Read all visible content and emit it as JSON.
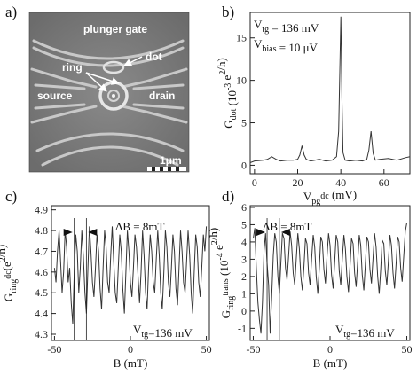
{
  "panels": {
    "a": {
      "label": "a)",
      "image_labels": {
        "plunger_gate": "plunger gate",
        "dot": "dot",
        "ring": "ring",
        "source": "source",
        "drain": "drain",
        "scale_bar": "1μm"
      }
    },
    "b": {
      "label": "b)"
    },
    "c": {
      "label": "c)"
    },
    "d": {
      "label": "d)"
    }
  },
  "chart_data": [
    {
      "id": "b",
      "type": "line",
      "annotations": [
        "V_tg = 136 mV",
        "V_bias = 10 μV"
      ],
      "ylabel": "G_dot (10^-3 e^2/h)",
      "xlabel": "V_pg^dc (mV)",
      "xlim": [
        -2,
        72
      ],
      "ylim": [
        -1,
        18
      ],
      "xticks": [
        0,
        20,
        40,
        60
      ],
      "yticks": [
        0,
        5,
        10,
        15
      ],
      "x": [
        -2,
        0,
        4,
        6,
        8,
        10,
        12,
        15,
        18,
        20,
        21,
        22,
        23,
        24,
        25,
        26,
        28,
        30,
        33,
        36,
        38,
        39,
        40,
        40.5,
        41,
        42,
        44,
        47,
        50,
        52,
        53,
        54,
        55,
        56,
        58,
        62,
        66,
        70,
        72
      ],
      "y": [
        0.3,
        0.5,
        0.6,
        0.7,
        1.0,
        0.7,
        0.5,
        0.6,
        0.6,
        0.7,
        1.2,
        2.3,
        1.2,
        0.7,
        0.6,
        0.5,
        0.6,
        0.7,
        0.5,
        0.6,
        1.0,
        4.0,
        17.5,
        8.0,
        1.5,
        0.6,
        0.5,
        0.6,
        0.5,
        0.7,
        1.8,
        4.0,
        1.4,
        0.6,
        0.7,
        0.8,
        0.6,
        0.9,
        1.0
      ]
    },
    {
      "id": "c",
      "type": "line",
      "annotations": [
        "ΔB = 8mT",
        "V_tg=136 mV"
      ],
      "ylabel": "G_ring^dc (e^2/h)",
      "xlabel": "B (mT)",
      "xlim": [
        -52,
        52
      ],
      "ylim": [
        4.27,
        4.92
      ],
      "xticks": [
        -50,
        0,
        50
      ],
      "yticks": [
        4.3,
        4.4,
        4.5,
        4.6,
        4.7,
        4.8,
        4.9
      ],
      "markers_x": [
        -37,
        -29
      ],
      "x": [
        -50,
        -49,
        -48,
        -47,
        -46,
        -45,
        -44,
        -43,
        -42,
        -41,
        -40,
        -39,
        -38,
        -37,
        -36,
        -35,
        -34,
        -33,
        -32,
        -31,
        -30,
        -29,
        -28,
        -27,
        -26,
        -25,
        -24,
        -23,
        -22,
        -21,
        -20,
        -19,
        -18,
        -17,
        -16,
        -15,
        -14,
        -13,
        -12,
        -11,
        -10,
        -9,
        -8,
        -7,
        -6,
        -5,
        -4,
        -3,
        -2,
        -1,
        0,
        1,
        2,
        3,
        4,
        5,
        6,
        7,
        8,
        9,
        10,
        11,
        12,
        13,
        14,
        15,
        16,
        17,
        18,
        19,
        20,
        21,
        22,
        23,
        24,
        25,
        26,
        27,
        28,
        29,
        30,
        31,
        32,
        33,
        34,
        35,
        36,
        37,
        38,
        39,
        40,
        41,
        42,
        43,
        44,
        45,
        46,
        47,
        48,
        49,
        50
      ],
      "y": [
        4.62,
        4.55,
        4.7,
        4.8,
        4.65,
        4.5,
        4.6,
        4.8,
        4.72,
        4.55,
        4.62,
        4.45,
        4.35,
        4.6,
        4.78,
        4.7,
        4.5,
        4.62,
        4.8,
        4.68,
        4.5,
        4.4,
        4.62,
        4.82,
        4.7,
        4.55,
        4.48,
        4.62,
        4.78,
        4.7,
        4.52,
        4.42,
        4.62,
        4.8,
        4.72,
        4.55,
        4.5,
        4.68,
        4.82,
        4.65,
        4.5,
        4.45,
        4.62,
        4.78,
        4.7,
        4.52,
        4.4,
        4.6,
        4.8,
        4.7,
        4.55,
        4.48,
        4.62,
        4.78,
        4.72,
        4.58,
        4.45,
        4.6,
        4.8,
        4.68,
        4.5,
        4.42,
        4.62,
        4.78,
        4.7,
        4.55,
        4.5,
        4.66,
        4.8,
        4.68,
        4.5,
        4.42,
        4.6,
        4.8,
        4.72,
        4.55,
        4.48,
        4.62,
        4.78,
        4.7,
        4.52,
        4.44,
        4.62,
        4.8,
        4.7,
        4.55,
        4.5,
        4.65,
        4.8,
        4.68,
        4.5,
        4.4,
        4.6,
        4.78,
        4.72,
        4.55,
        4.48,
        4.62,
        4.78,
        4.7,
        4.82
      ]
    },
    {
      "id": "d",
      "type": "line",
      "annotations": [
        "ΔB = 8mT",
        "V_tg=136 mV"
      ],
      "ylabel": "G_ring^trans (10^-4 e^2/h)",
      "xlabel": "B (mT)",
      "xlim": [
        -52,
        52
      ],
      "ylim": [
        -1.7,
        6.1
      ],
      "xticks": [
        -50,
        0,
        50
      ],
      "yticks": [
        -1,
        0,
        1,
        2,
        3,
        4,
        5,
        6
      ],
      "markers_x": [
        -41,
        -33
      ],
      "x": [
        -50,
        -49,
        -48,
        -47,
        -46,
        -45,
        -44,
        -43,
        -42,
        -41,
        -40,
        -39,
        -38,
        -37,
        -36,
        -35,
        -34,
        -33,
        -32,
        -31,
        -30,
        -29,
        -28,
        -27,
        -26,
        -25,
        -24,
        -23,
        -22,
        -21,
        -20,
        -19,
        -18,
        -17,
        -16,
        -15,
        -14,
        -13,
        -12,
        -11,
        -10,
        -9,
        -8,
        -7,
        -6,
        -5,
        -4,
        -3,
        -2,
        -1,
        0,
        1,
        2,
        3,
        4,
        5,
        6,
        7,
        8,
        9,
        10,
        11,
        12,
        13,
        14,
        15,
        16,
        17,
        18,
        19,
        20,
        21,
        22,
        23,
        24,
        25,
        26,
        27,
        28,
        29,
        30,
        31,
        32,
        33,
        34,
        35,
        36,
        37,
        38,
        39,
        40,
        41,
        42,
        43,
        44,
        45,
        46,
        47,
        48,
        49,
        50
      ],
      "y": [
        4.2,
        4.8,
        2.5,
        0.5,
        -0.5,
        -1.3,
        0.5,
        3.5,
        4.5,
        2.8,
        1.5,
        -1.3,
        0.8,
        3.2,
        4.5,
        4.0,
        2.0,
        1.0,
        2.8,
        4.5,
        4.2,
        2.5,
        1.8,
        3.2,
        4.6,
        3.8,
        2.2,
        1.5,
        3.0,
        4.5,
        3.6,
        2.0,
        1.2,
        2.6,
        4.2,
        3.9,
        2.2,
        1.5,
        3.0,
        4.4,
        3.7,
        2.0,
        1.0,
        2.5,
        4.3,
        4.0,
        2.4,
        1.6,
        3.1,
        4.5,
        3.8,
        2.1,
        1.3,
        2.8,
        4.4,
        4.0,
        2.3,
        1.5,
        3.0,
        4.4,
        3.6,
        2.0,
        1.1,
        2.6,
        4.2,
        3.9,
        2.2,
        1.4,
        2.9,
        4.4,
        3.8,
        2.1,
        1.2,
        2.7,
        4.3,
        4.0,
        2.4,
        1.6,
        3.1,
        4.5,
        3.7,
        2.0,
        1.0,
        2.4,
        4.1,
        3.9,
        2.3,
        1.5,
        2.9,
        4.4,
        3.8,
        2.2,
        1.3,
        2.7,
        4.3,
        4.0,
        2.5,
        1.7,
        3.2,
        4.6,
        5.1
      ]
    }
  ]
}
